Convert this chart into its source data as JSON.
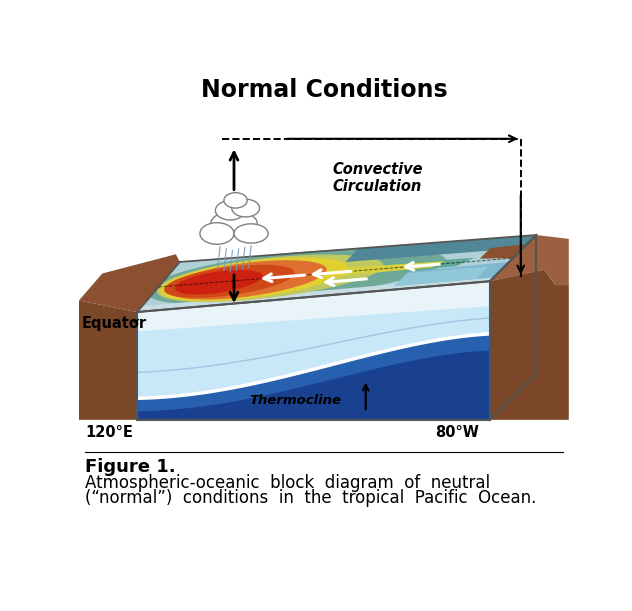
{
  "title": "Normal Conditions",
  "title_fontsize": 17,
  "title_fontweight": "bold",
  "bg_color": "#ffffff",
  "figure_caption_line1": "Figure 1.",
  "figure_caption_line2": "Atmospheric-oceanic  block  diagram  of  neutral",
  "figure_caption_line3": "(“normal”)  conditions  in  the  tropical  Pacific  Ocean.",
  "caption_fontsize": 12,
  "label_equator": "Equator",
  "label_thermocline": "Thermocline",
  "label_convective": "Convective\nCirculation",
  "label_120E": "120°E",
  "label_80W": "80°W",
  "box_color": "#333333",
  "land_color": "#7b4a2a",
  "deep_ocean": "#1a3a8a",
  "mid_ocean": "#2a5aaa"
}
